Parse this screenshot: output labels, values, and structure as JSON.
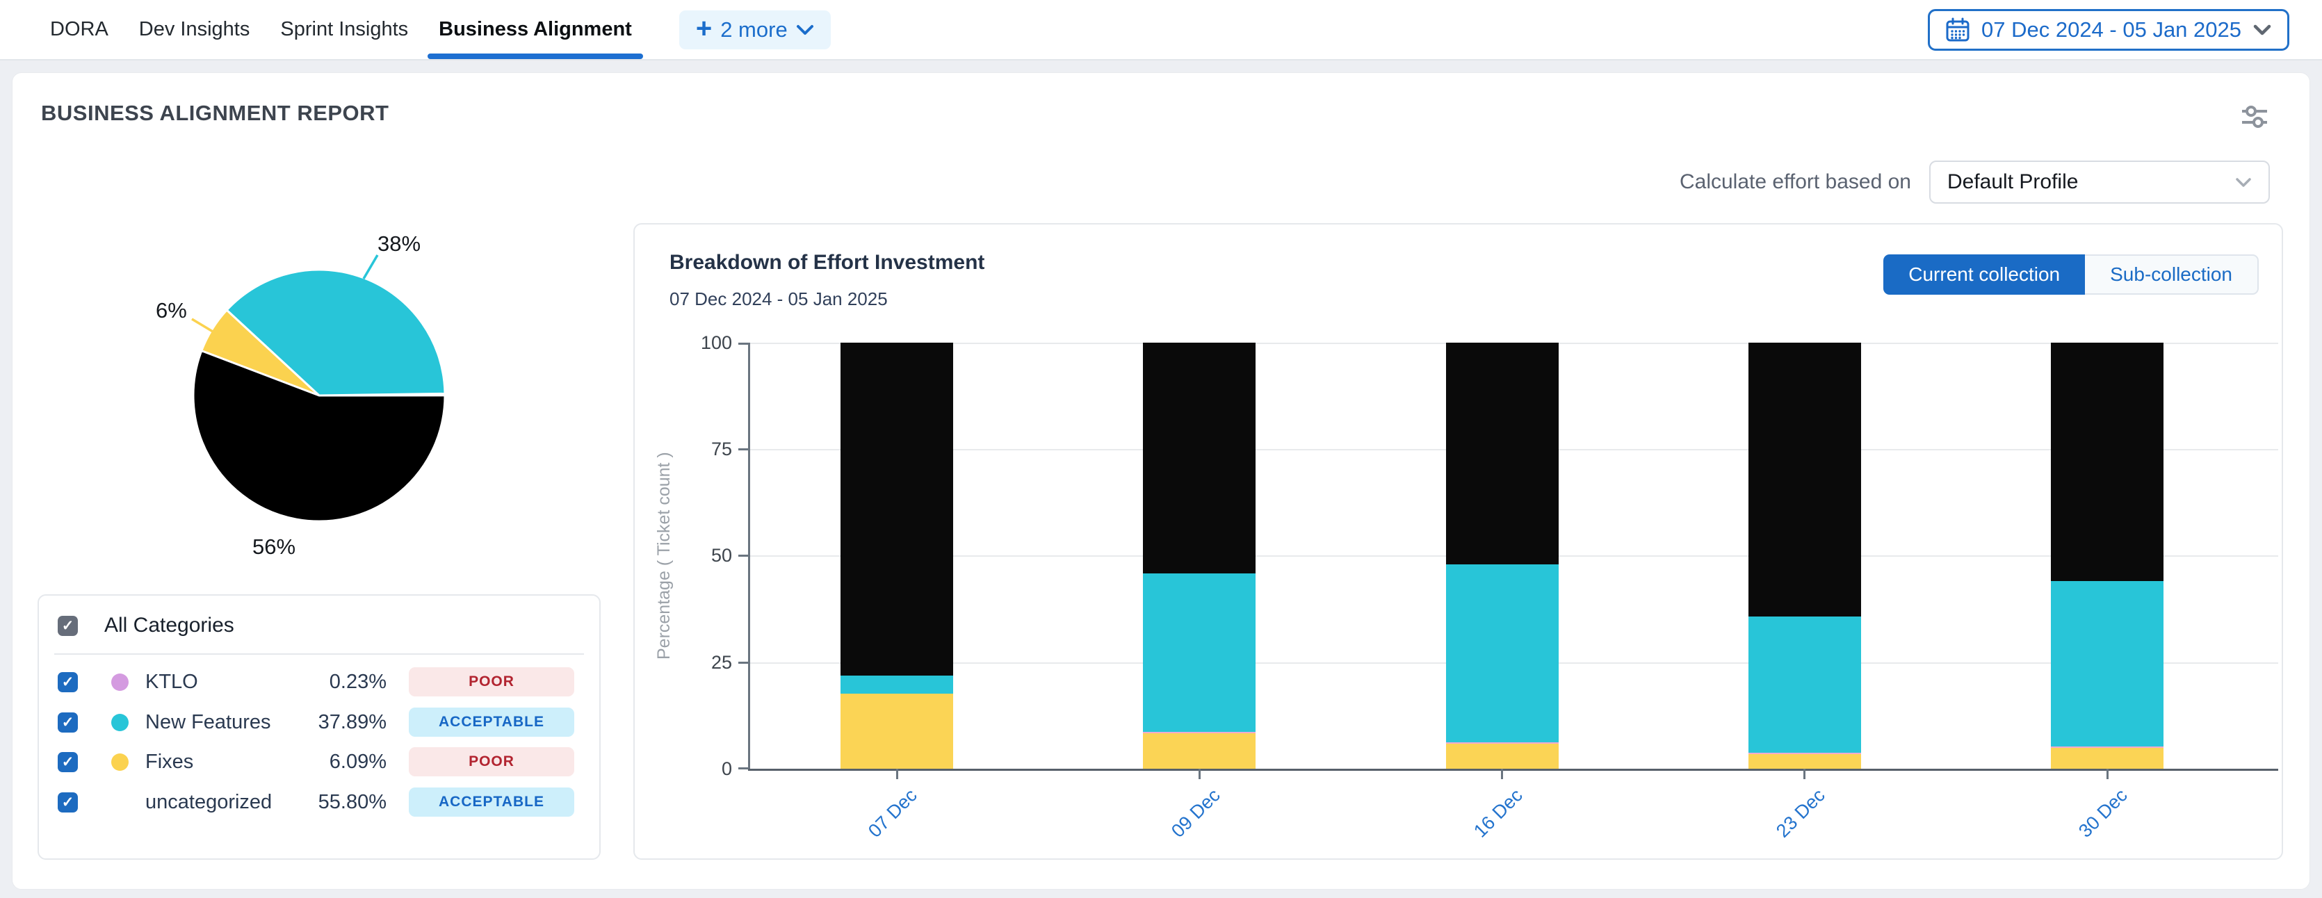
{
  "nav": {
    "tabs": [
      {
        "label": "DORA"
      },
      {
        "label": "Dev Insights"
      },
      {
        "label": "Sprint Insights"
      },
      {
        "label": "Business Alignment",
        "active": true
      }
    ],
    "more": {
      "plus": "+",
      "label": "2 more"
    },
    "date_range": "07 Dec 2024 - 05 Jan 2025"
  },
  "report": {
    "title": "BUSINESS ALIGNMENT REPORT",
    "effort_label": "Calculate effort based on",
    "effort_profile": "Default Profile"
  },
  "legend": {
    "all_label": "All Categories",
    "items": [
      {
        "name": "KTLO",
        "value": "0.23%",
        "status": "POOR",
        "color": "#d49be0"
      },
      {
        "name": "New Features",
        "value": "37.89%",
        "status": "ACCEPTABLE",
        "color": "#28c5d8"
      },
      {
        "name": "Fixes",
        "value": "6.09%",
        "status": "POOR",
        "color": "#fbd24f"
      },
      {
        "name": "uncategorized",
        "value": "55.80%",
        "status": "ACCEPTABLE",
        "color": ""
      }
    ]
  },
  "chart_panel": {
    "title": "Breakdown of Effort Investment",
    "subtitle": "07 Dec 2024 - 05 Jan 2025",
    "buttons": [
      {
        "label": "Current collection",
        "active": true
      },
      {
        "label": "Sub-collection",
        "active": false
      }
    ]
  },
  "colors": {
    "accent_blue": "#1b6ac9",
    "active_button": "#1a6bc5",
    "tab_underline": "#1d6fd1",
    "poor_text": "#b22430",
    "poor_bg": "#fae8e8",
    "acceptable_text": "#1767c5",
    "acceptable_bg": "#cdeffb"
  },
  "chart_data": [
    {
      "type": "pie",
      "title": "Effort distribution by category",
      "slices": [
        {
          "name": "KTLO",
          "pct": 0.23,
          "color": "#d49be0",
          "label": ""
        },
        {
          "name": "New Features",
          "pct": 37.89,
          "color": "#28c5d8",
          "label": "38%"
        },
        {
          "name": "Fixes",
          "pct": 6.09,
          "color": "#fbd24f",
          "label": "6%"
        },
        {
          "name": "uncategorized",
          "pct": 55.8,
          "color": "#000000",
          "label": "56%"
        }
      ]
    },
    {
      "type": "bar",
      "stacked": true,
      "title": "Breakdown of Effort Investment",
      "subtitle": "07 Dec 2024 - 05 Jan 2025",
      "categories": [
        "07 Dec",
        "09 Dec",
        "16 Dec",
        "23 Dec",
        "30 Dec"
      ],
      "series": [
        {
          "name": "Fixes",
          "color": "#fbd455",
          "values": [
            17.6,
            8.3,
            5.9,
            3.4,
            4.9
          ]
        },
        {
          "name": "KTLO",
          "color": "#f3abce",
          "values": [
            0,
            0.3,
            0.3,
            0.3,
            0.3
          ]
        },
        {
          "name": "New Features",
          "color": "#28c5d8",
          "values": [
            4.3,
            37.2,
            41.7,
            32.0,
            38.9
          ]
        },
        {
          "name": "uncategorized",
          "color": "#0a0a0a",
          "values": [
            78.1,
            54.2,
            52.1,
            64.3,
            55.9
          ]
        }
      ],
      "xlabel": "",
      "ylabel": "Percentage ( Ticket count )",
      "y_ticks": [
        0,
        25,
        50,
        75,
        100
      ],
      "ylim": [
        0,
        100
      ],
      "grid": true,
      "legend_position": "none"
    }
  ]
}
